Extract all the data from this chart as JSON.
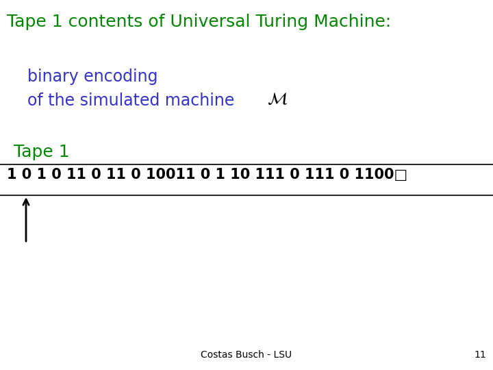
{
  "title": "Tape 1 contents of Universal Turing Machine:",
  "title_color": "#008800",
  "title_fontsize": 18,
  "binary_encoding_line1": "binary encoding",
  "binary_encoding_line2": "of the simulated machine",
  "binary_encoding_color": "#3333cc",
  "binary_encoding_fontsize": 17,
  "M_color": "#000000",
  "M_fontsize": 18,
  "tape_label": "Tape 1",
  "tape_label_color": "#008800",
  "tape_label_fontsize": 18,
  "tape_content": "1 0 1 0 11 0 11 0 10011 0 1 10 111 0 111 0 1100□",
  "tape_content_color": "#000000",
  "tape_content_fontsize": 15,
  "footer_text": "Costas Busch - LSU",
  "footer_page": "11",
  "footer_color": "#000000",
  "footer_fontsize": 10,
  "background_color": "#ffffff"
}
